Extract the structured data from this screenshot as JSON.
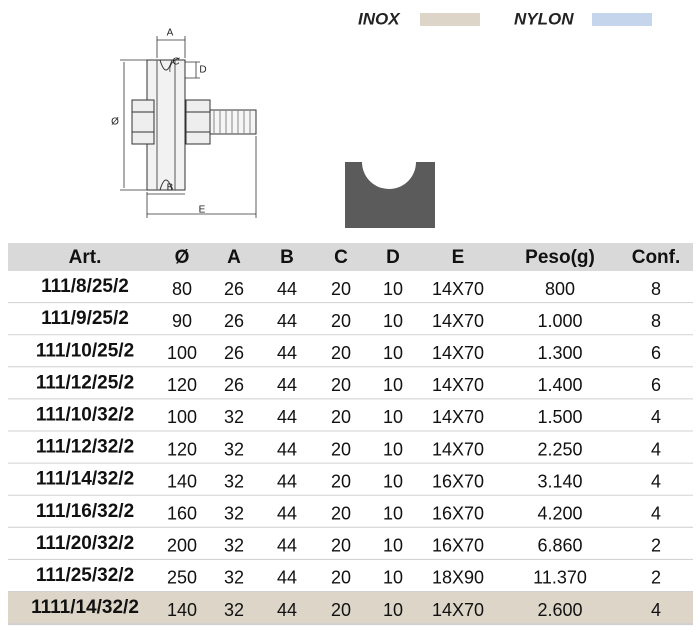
{
  "legend": [
    {
      "label": "INOX",
      "color": "#ddd6c8"
    },
    {
      "label": "NYLON",
      "color": "#c5d6ec"
    }
  ],
  "drawing": {
    "labels": [
      "A",
      "C",
      "D",
      "Ø",
      "B",
      "E"
    ]
  },
  "table": {
    "header": [
      "Art.",
      "Ø",
      "A",
      "B",
      "C",
      "D",
      "E",
      "Peso(g)",
      "Conf."
    ],
    "rows": [
      [
        "111/8/25/2",
        "80",
        "26",
        "44",
        "20",
        "10",
        "14X70",
        "800",
        "8"
      ],
      [
        "111/9/25/2",
        "90",
        "26",
        "44",
        "20",
        "10",
        "14X70",
        "1.000",
        "8"
      ],
      [
        "111/10/25/2",
        "100",
        "26",
        "44",
        "20",
        "10",
        "14X70",
        "1.300",
        "6"
      ],
      [
        "111/12/25/2",
        "120",
        "26",
        "44",
        "20",
        "10",
        "14X70",
        "1.400",
        "6"
      ],
      [
        "111/10/32/2",
        "100",
        "32",
        "44",
        "20",
        "10",
        "14X70",
        "1.500",
        "4"
      ],
      [
        "111/12/32/2",
        "120",
        "32",
        "44",
        "20",
        "10",
        "14X70",
        "2.250",
        "4"
      ],
      [
        "111/14/32/2",
        "140",
        "32",
        "44",
        "20",
        "10",
        "16X70",
        "3.140",
        "4"
      ],
      [
        "111/16/32/2",
        "160",
        "32",
        "44",
        "20",
        "10",
        "16X70",
        "4.200",
        "4"
      ],
      [
        "111/20/32/2",
        "200",
        "32",
        "44",
        "20",
        "10",
        "16X70",
        "6.860",
        "2"
      ],
      [
        "111/25/32/2",
        "250",
        "32",
        "44",
        "20",
        "10",
        "18X90",
        "11.370",
        "2"
      ],
      [
        "1111/14/32/2",
        "140",
        "32",
        "44",
        "20",
        "10",
        "14X70",
        "2.600",
        "4"
      ]
    ]
  }
}
